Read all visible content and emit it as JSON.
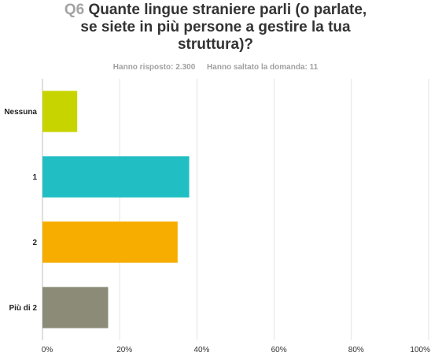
{
  "question": {
    "number": "Q6",
    "title_lines": [
      "Quante lingue straniere parli (o parlate,",
      "se siete in più persone a gestire la tua",
      "struttura)?"
    ]
  },
  "meta": {
    "answered_label": "Hanno risposto: 2.300",
    "skipped_label": "Hanno saltato la domanda: 11"
  },
  "chart_data": {
    "type": "bar",
    "orientation": "horizontal",
    "categories": [
      "Nessuna",
      "1",
      "2",
      "Più di 2"
    ],
    "values": [
      9,
      38,
      35,
      17
    ],
    "colors": [
      "#c8d400",
      "#21bec3",
      "#f7ad00",
      "#8b8b78"
    ],
    "xlim": [
      0,
      100
    ],
    "x_ticks": [
      0,
      20,
      40,
      60,
      80,
      100
    ],
    "x_tick_labels": [
      "0%",
      "20%",
      "40%",
      "60%",
      "80%",
      "100%"
    ],
    "grid": true
  }
}
